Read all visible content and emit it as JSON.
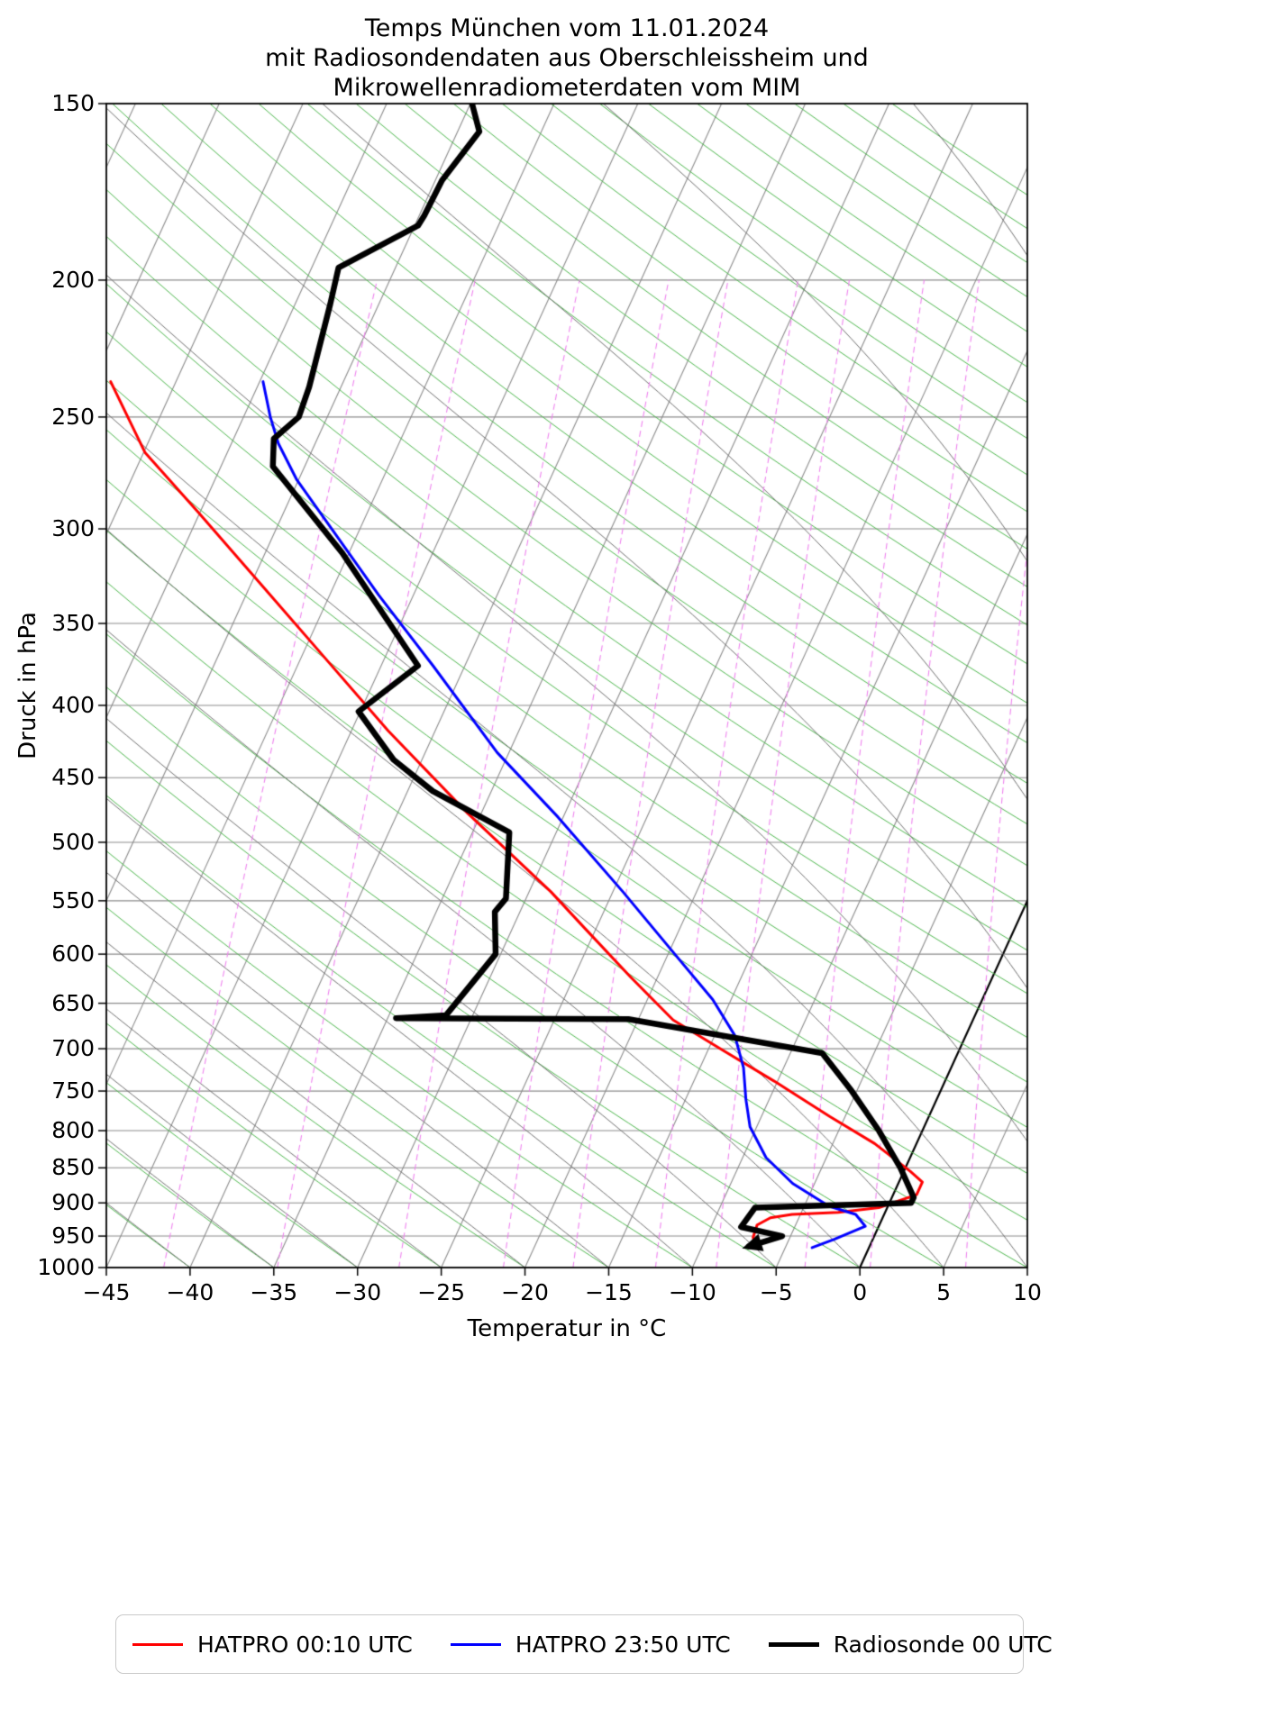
{
  "title": {
    "line1": "Temps München vom 11.01.2024",
    "line2": "mit Radiosondendaten aus Oberschleissheim und",
    "line3": "Mikrowellenradiometerdaten vom MIM"
  },
  "axes": {
    "x_label": "Temperatur in °C",
    "y_label": "Druck in hPa",
    "x_ticks": [
      -45,
      -40,
      -35,
      -30,
      -25,
      -20,
      -15,
      -10,
      -5,
      0,
      5,
      10
    ],
    "y_ticks": [
      150,
      200,
      250,
      300,
      350,
      400,
      450,
      500,
      550,
      600,
      650,
      700,
      750,
      800,
      850,
      900,
      950,
      1000
    ]
  },
  "legend": {
    "items": [
      {
        "label": "HATPRO 00:10 UTC",
        "color": "#ff0000"
      },
      {
        "label": "HATPRO 23:50 UTC",
        "color": "#0000ff"
      },
      {
        "label": "Radiosonde 00 UTC",
        "color": "#000000"
      }
    ]
  },
  "chart_data": {
    "type": "line",
    "diagram": "skew-T log-p",
    "title": "Temps München vom 11.01.2024 mit Radiosondendaten aus Oberschleissheim und Mikrowellenradiometerdaten vom MIM",
    "xlabel": "Temperatur in °C",
    "ylabel": "Druck in hPa",
    "x_range_C": [
      -45,
      10
    ],
    "pressure_range_hPa": [
      150,
      1000
    ],
    "y_scale": "log",
    "skew_C_per_ln_p": 16.73,
    "background": {
      "isobar_step_hPa": 50,
      "isotherm_step_C": 5,
      "isotherm_min_C": -80,
      "isotherm_max_C": 10,
      "grid_color": "#8c8c8c",
      "zero_isotherm_color": "#000000",
      "dry_adiabat_color": "#4bb54b",
      "dry_adiabats_theta_C": [
        -40,
        -35,
        -30,
        -25,
        -20,
        -15,
        -10,
        -5,
        0,
        5,
        10,
        15,
        20,
        25,
        30,
        35,
        40,
        45,
        50,
        55,
        60,
        65,
        70,
        75,
        80,
        85,
        90,
        95,
        100,
        105,
        110,
        115,
        120,
        125,
        130,
        135,
        140,
        145
      ],
      "moist_adiabat_color": "#6e6e6e",
      "moist_adiabat_start_C": [
        -40,
        -35,
        -30,
        -25,
        -20,
        -15,
        -10,
        -5,
        0,
        5,
        10,
        15,
        20,
        25,
        30,
        35,
        40
      ],
      "mixing_ratio_color": "#ee82ee",
      "mixing_ratio_g_kg": [
        0.1,
        0.2,
        0.4,
        0.7,
        1,
        1.5,
        2,
        3,
        4,
        6,
        8
      ]
    },
    "series": [
      {
        "name": "HATPRO 00:10 UTC",
        "color": "#ff0000",
        "width": 3,
        "points": [
          [
            236,
            -68.9
          ],
          [
            265,
            -64.9
          ],
          [
            292,
            -60.1
          ],
          [
            329,
            -54.3
          ],
          [
            370,
            -48.6
          ],
          [
            417,
            -42.8
          ],
          [
            477,
            -35.8
          ],
          [
            542,
            -28.7
          ],
          [
            575,
            -25.7
          ],
          [
            623,
            -21.6
          ],
          [
            668,
            -17.9
          ],
          [
            701,
            -14.2
          ],
          [
            738,
            -10.2
          ],
          [
            782,
            -5.9
          ],
          [
            817,
            -2.5
          ],
          [
            855,
            0.4
          ],
          [
            870,
            1.4
          ],
          [
            888,
            1.4
          ],
          [
            907,
            -0.5
          ],
          [
            914,
            -2.8
          ],
          [
            917,
            -5.5
          ],
          [
            922,
            -6.7
          ],
          [
            933,
            -7.3
          ],
          [
            952,
            -7.2
          ],
          [
            963,
            -6.9
          ]
        ]
      },
      {
        "name": "HATPRO 23:50 UTC",
        "color": "#0000ff",
        "width": 3,
        "points": [
          [
            236,
            -59.8
          ],
          [
            250,
            -58.4
          ],
          [
            261,
            -57.2
          ],
          [
            277,
            -55.1
          ],
          [
            302,
            -51.4
          ],
          [
            334,
            -47.1
          ],
          [
            375,
            -41.9
          ],
          [
            432,
            -35.7
          ],
          [
            480,
            -30.3
          ],
          [
            542,
            -24.4
          ],
          [
            600,
            -19.6
          ],
          [
            646,
            -16.1
          ],
          [
            685,
            -13.8
          ],
          [
            722,
            -12.4
          ],
          [
            760,
            -11.4
          ],
          [
            795,
            -10.4
          ],
          [
            836,
            -8.6
          ],
          [
            872,
            -6.3
          ],
          [
            905,
            -3.5
          ],
          [
            917,
            -1.7
          ],
          [
            935,
            -0.8
          ],
          [
            955,
            -2.3
          ],
          [
            968,
            -3.4
          ]
        ]
      },
      {
        "name": "Radiosonde 00 UTC",
        "color": "#000000",
        "width": 6.5,
        "arrow_end": true,
        "points": [
          [
            150,
            -54.9
          ],
          [
            157,
            -53.7
          ],
          [
            170,
            -54.6
          ],
          [
            180,
            -54.7
          ],
          [
            183,
            -54.8
          ],
          [
            196,
            -58.4
          ],
          [
            208,
            -57.9
          ],
          [
            238,
            -56.9
          ],
          [
            250,
            -56.7
          ],
          [
            259,
            -57.6
          ],
          [
            271,
            -56.9
          ],
          [
            312,
            -50.4
          ],
          [
            375,
            -42.8
          ],
          [
            404,
            -45.1
          ],
          [
            437,
            -41.7
          ],
          [
            460,
            -38.5
          ],
          [
            492,
            -32.8
          ],
          [
            548,
            -31.2
          ],
          [
            560,
            -31.5
          ],
          [
            600,
            -30.3
          ],
          [
            663,
            -31.6
          ],
          [
            666,
            -34.5
          ],
          [
            667,
            -20.6
          ],
          [
            705,
            -8.1
          ],
          [
            750,
            -5.3
          ],
          [
            800,
            -2.6
          ],
          [
            850,
            -0.3
          ],
          [
            892,
            1.3
          ],
          [
            900,
            1.3
          ],
          [
            907,
            -7.9
          ],
          [
            936,
            -8.2
          ],
          [
            950,
            -5.5
          ],
          [
            966,
            -7.2
          ]
        ]
      }
    ]
  }
}
